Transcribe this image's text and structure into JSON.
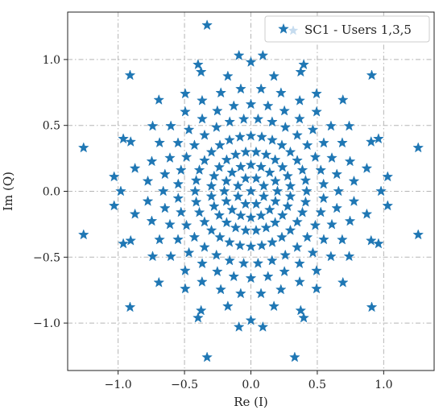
{
  "chart_data": {
    "type": "scatter",
    "xlabel": "Re (I)",
    "ylabel": "Im (Q)",
    "xlim": [
      -1.38,
      1.38
    ],
    "ylim": [
      -1.36,
      1.36
    ],
    "xticks": [
      -1.0,
      -0.5,
      0.0,
      0.5,
      1.0
    ],
    "xtick_labels": [
      "−1.0",
      "−0.5",
      "0.0",
      "0.5",
      "1.0"
    ],
    "yticks": [
      -1.0,
      -0.5,
      0.0,
      0.5,
      1.0
    ],
    "yticks_labels_note": "",
    "ytick_labels": [
      "−1.0",
      "−0.5",
      "0.0",
      "0.5",
      "1.0"
    ],
    "grid": true,
    "legend_position": "top-right",
    "marker": "star",
    "series": [
      {
        "name": "SC1 - Users 1,3,5",
        "color": "#1f77b4",
        "marker_shape": "star",
        "rings": [
          {
            "radius": 0.105,
            "count": 8,
            "phase_deg": 22.5
          },
          {
            "radius": 0.2,
            "count": 16,
            "phase_deg": 0
          },
          {
            "radius": 0.3,
            "count": 24,
            "phase_deg": 7.5
          },
          {
            "radius": 0.42,
            "count": 32,
            "phase_deg": 0
          },
          {
            "radius": 0.55,
            "count": 32,
            "phase_deg": 5.6
          },
          {
            "radius": 0.66,
            "count": 32,
            "phase_deg": 0
          },
          {
            "radius": 0.78,
            "count": 32,
            "phase_deg": 5.6
          },
          {
            "radius": 0.89,
            "count": 16,
            "phase_deg": 11.25
          },
          {
            "radius": 0.98,
            "count": 16,
            "phase_deg": 0
          },
          {
            "radius": 1.04,
            "count": 8,
            "phase_deg": 22.5
          }
        ],
        "points": [
          [
            0.0,
            0.0
          ],
          [
            -0.33,
            1.26
          ],
          [
            0.33,
            -1.26
          ],
          [
            -0.33,
            -1.26
          ],
          [
            0.33,
            1.26
          ],
          [
            -1.26,
            0.33
          ],
          [
            1.26,
            0.33
          ],
          [
            -1.26,
            -0.33
          ],
          [
            1.26,
            -0.33
          ],
          [
            -0.09,
            1.03
          ],
          [
            0.09,
            1.03
          ],
          [
            -0.09,
            -1.03
          ],
          [
            0.09,
            -1.03
          ],
          [
            1.03,
            0.11
          ],
          [
            -1.03,
            0.11
          ],
          [
            1.03,
            -0.11
          ],
          [
            -1.03,
            -0.11
          ],
          [
            -0.91,
            0.88
          ],
          [
            0.91,
            0.88
          ],
          [
            -0.91,
            -0.88
          ],
          [
            0.91,
            -0.88
          ]
        ]
      }
    ]
  }
}
